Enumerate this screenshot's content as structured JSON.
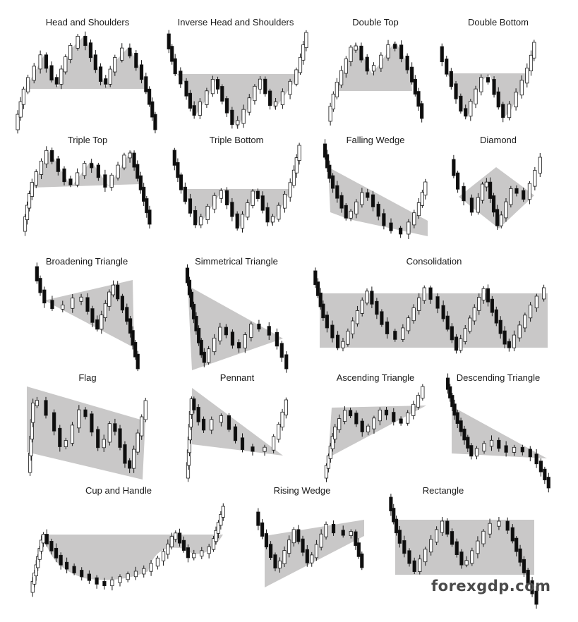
{
  "patterns": [
    {
      "id": "head-and-shoulders",
      "title": "Head and Shoulders"
    },
    {
      "id": "inverse-head-and-shoulders",
      "title": "Inverse Head and Shoulders"
    },
    {
      "id": "double-top",
      "title": "Double Top"
    },
    {
      "id": "double-bottom",
      "title": "Double Bottom"
    },
    {
      "id": "triple-top",
      "title": "Triple Top"
    },
    {
      "id": "triple-bottom",
      "title": "Triple Bottom"
    },
    {
      "id": "falling-wedge",
      "title": "Falling Wedge"
    },
    {
      "id": "diamond",
      "title": "Diamond"
    },
    {
      "id": "broadening-triangle",
      "title": "Broadening Triangle"
    },
    {
      "id": "simmetrical-triangle",
      "title": "Simmetrical Triangle"
    },
    {
      "id": "consolidation",
      "title": "Consolidation"
    },
    {
      "id": "flag",
      "title": "Flag"
    },
    {
      "id": "pennant",
      "title": "Pennant"
    },
    {
      "id": "ascending-triangle",
      "title": "Ascending Triangle"
    },
    {
      "id": "descending-triangle",
      "title": "Descending Triangle"
    },
    {
      "id": "cup-and-handle",
      "title": "Cup and Handle"
    },
    {
      "id": "rising-wedge",
      "title": "Rising Wedge"
    },
    {
      "id": "rectangle",
      "title": "Rectangle"
    }
  ],
  "watermark": "forexgdp.com",
  "colors": {
    "shade": "#c9c8c8",
    "candle_bear": "#0d0d0d",
    "candle_bull": "#ffffff",
    "stroke": "#1a1a1a",
    "text": "#1a1a1a"
  }
}
